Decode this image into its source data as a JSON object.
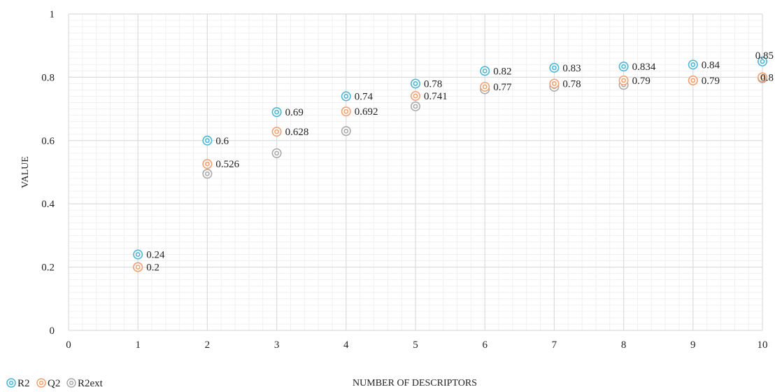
{
  "chart_data": {
    "type": "scatter",
    "title": "",
    "xlabel": "NUMBER OF DESCRIPTORS",
    "ylabel": "VALUE",
    "xlim": [
      0,
      10
    ],
    "ylim": [
      0,
      1
    ],
    "xticks": [
      "0",
      "1",
      "2",
      "3",
      "4",
      "5",
      "6",
      "7",
      "8",
      "9",
      "10"
    ],
    "yticks": [
      "0",
      "0.2",
      "0.4",
      "0.6",
      "0.8",
      "1"
    ],
    "grid": true,
    "legend": "bottom-left",
    "series": [
      {
        "name": "R2",
        "color": "#4bb5d4",
        "x": [
          1,
          2,
          3,
          4,
          5,
          6,
          7,
          8,
          9,
          10
        ],
        "y": [
          0.24,
          0.6,
          0.69,
          0.74,
          0.78,
          0.82,
          0.83,
          0.834,
          0.84,
          0.85
        ],
        "labels": [
          "0.24",
          "0.6",
          "0.69",
          "0.74",
          "0.78",
          "0.82",
          "0.83",
          "0.834",
          "0.84",
          "0.85"
        ]
      },
      {
        "name": "Q2",
        "color": "#f2a071",
        "x": [
          1,
          2,
          3,
          4,
          5,
          6,
          7,
          8,
          9,
          10
        ],
        "y": [
          0.2,
          0.526,
          0.628,
          0.692,
          0.741,
          0.77,
          0.78,
          0.79,
          0.79,
          0.8
        ],
        "labels": [
          "0.2",
          "0.526",
          "0.628",
          "0.692",
          "0.741",
          "0.77",
          "0.78",
          "0.79",
          "0.79",
          "0.8"
        ]
      },
      {
        "name": "R2ext",
        "color": "#a9a9a9",
        "x": [
          1,
          2,
          3,
          4,
          5,
          6,
          7,
          8,
          9,
          10
        ],
        "y": [
          0.2,
          0.495,
          0.56,
          0.63,
          0.708,
          0.762,
          0.77,
          0.776,
          0.79,
          0.797
        ],
        "labels": []
      }
    ]
  }
}
